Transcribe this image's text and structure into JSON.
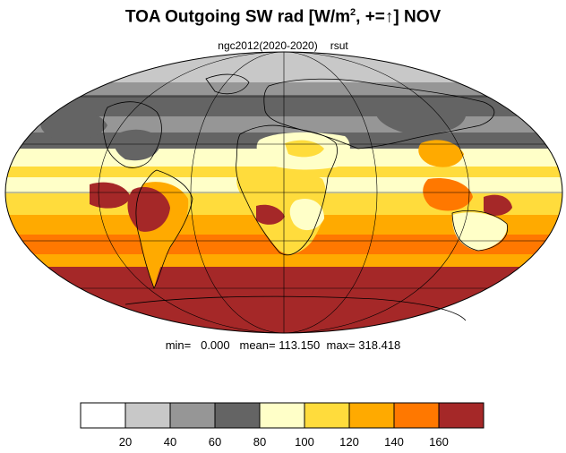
{
  "title": {
    "prefix": "TOA Outgoing SW rad [W/m",
    "sup": "2",
    "suffix": ", +=↑] NOV"
  },
  "subtitle": {
    "case": "ngc2012(2020-2020)",
    "variable": "rsut"
  },
  "stats": {
    "min_label": "min=",
    "min": "0.000",
    "mean_label": "mean=",
    "mean": "113.150",
    "max_label": "max=",
    "max": "318.418"
  },
  "colorbar": {
    "colors": [
      "#ffffff",
      "#c8c8c8",
      "#969696",
      "#646464",
      "#ffffc8",
      "#ffdc3c",
      "#ffaa00",
      "#ff7800",
      "#a52828"
    ],
    "tick_labels": [
      "20",
      "40",
      "60",
      "80",
      "100",
      "120",
      "140",
      "160"
    ]
  },
  "map": {
    "projection": "Mollweide",
    "graticule": true,
    "coastlines": true
  }
}
